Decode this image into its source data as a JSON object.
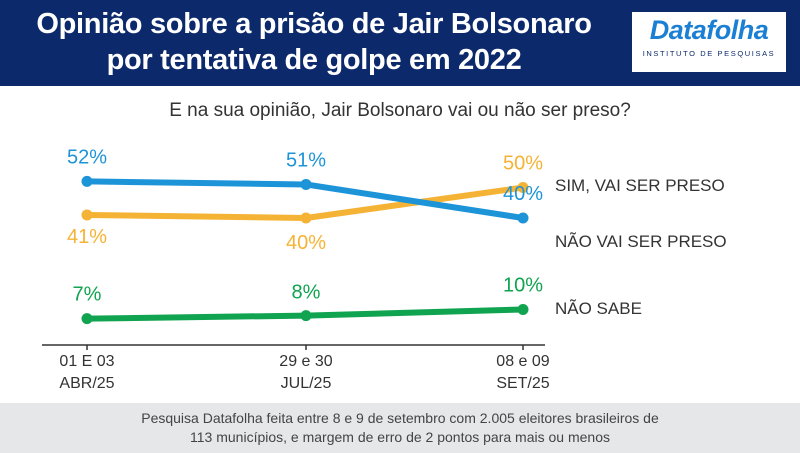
{
  "header": {
    "title_line1": "Opinião sobre a prisão de Jair Bolsonaro",
    "title_line2": "por tentativa de golpe em 2022",
    "logo_name": "Datafolha",
    "logo_subtitle": "INSTITUTO DE PESQUISAS"
  },
  "question": "E na sua opinião, Jair Bolsonaro vai ou não ser preso?",
  "chart_data": {
    "type": "line",
    "categories": [
      {
        "line1": "01 E 03",
        "line2": "ABR/25"
      },
      {
        "line1": "29 e 30",
        "line2": "JUL/25"
      },
      {
        "line1": "08 e 09",
        "line2": "SET/25"
      }
    ],
    "series": [
      {
        "name": "SIM, VAI SER PRESO",
        "values": [
          41,
          40,
          50
        ],
        "labels": [
          "41%",
          "40%",
          "50%"
        ],
        "color": "#f5b335"
      },
      {
        "name": "NÃO VAI SER PRESO",
        "values": [
          52,
          51,
          40
        ],
        "labels": [
          "52%",
          "51%",
          "40%"
        ],
        "color": "#1e94d8"
      },
      {
        "name": "NÃO SABE",
        "values": [
          7,
          8,
          10
        ],
        "labels": [
          "7%",
          "8%",
          "10%"
        ],
        "color": "#10a350"
      }
    ],
    "ylim": [
      0,
      58
    ],
    "grid": false,
    "legend": "right"
  },
  "footer": {
    "line1": "Pesquisa Datafolha feita entre 8 e 9 de setembro com 2.005 eleitores brasileiros de",
    "line2": "113 municípios, e margem de erro de 2 pontos para mais ou menos"
  }
}
